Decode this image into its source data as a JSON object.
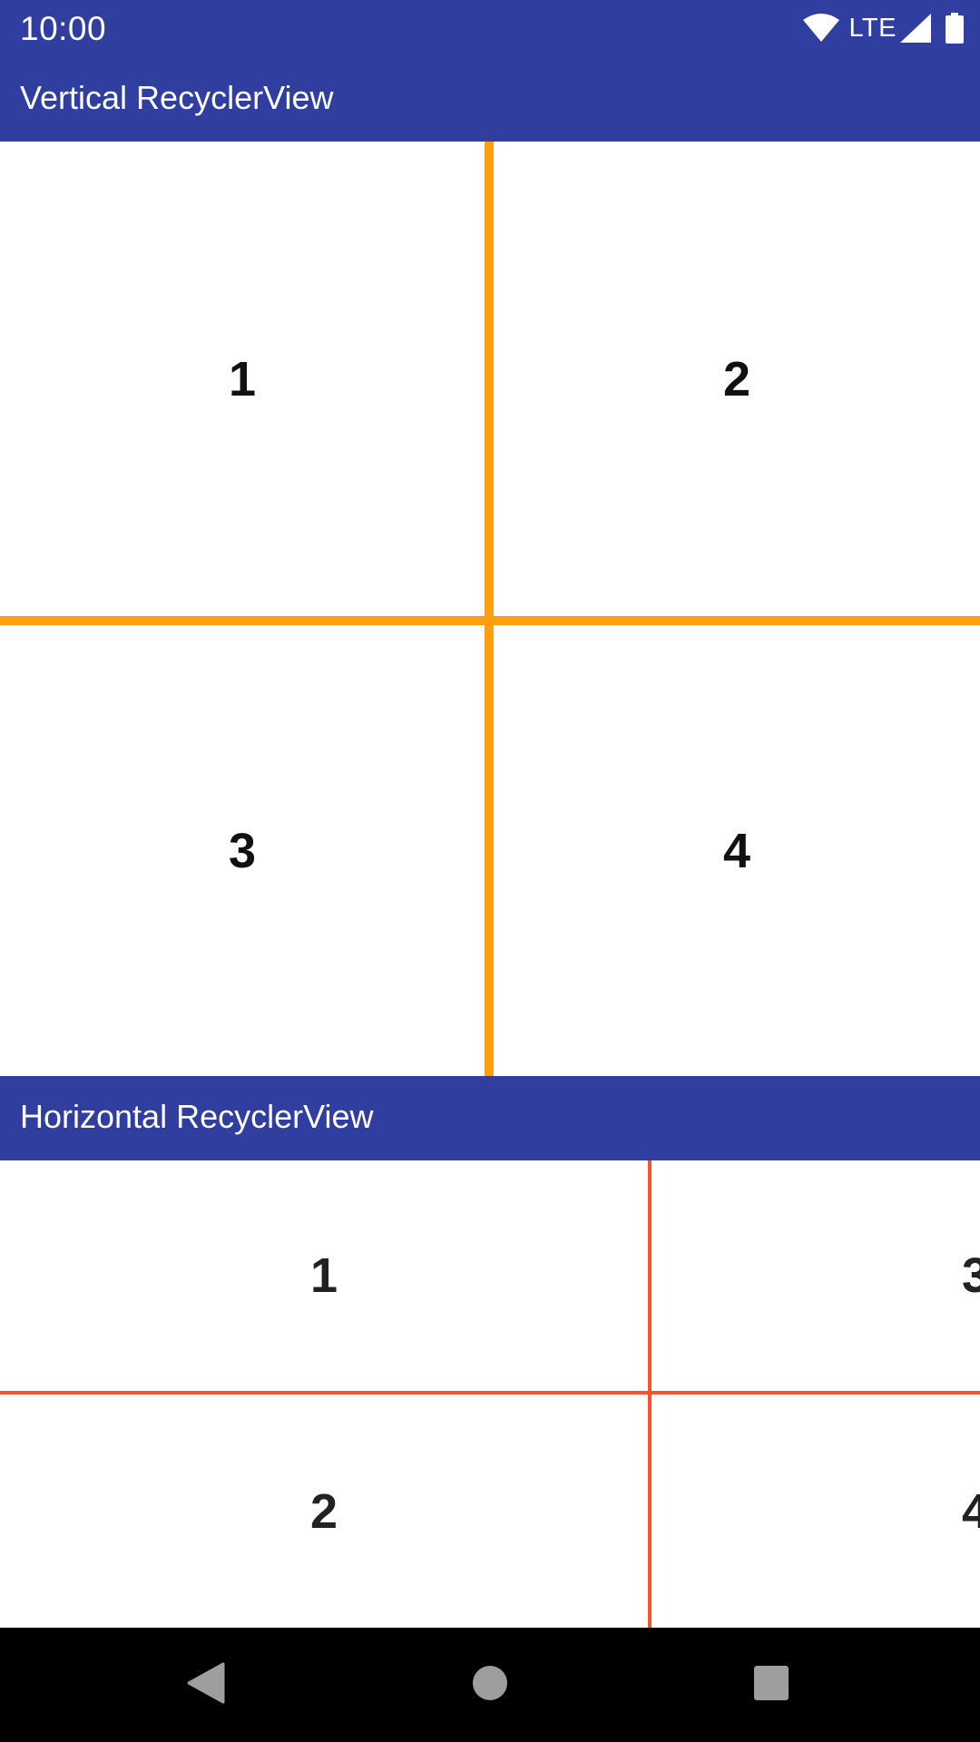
{
  "status_bar": {
    "time": "10:00",
    "network": "LTE",
    "icons": [
      "wifi-icon",
      "signal-icon",
      "battery-icon"
    ]
  },
  "vertical_section": {
    "title": "Vertical RecyclerView",
    "items": [
      "1",
      "2",
      "3",
      "4"
    ],
    "divider_color": "#ff9f0f"
  },
  "horizontal_section": {
    "title": "Horizontal RecyclerView",
    "items": [
      "1",
      "2",
      "3",
      "4"
    ],
    "divider_color": "#f2552c"
  },
  "navigation_bar": {
    "buttons": [
      "back-icon",
      "home-icon",
      "recents-icon"
    ]
  },
  "colors": {
    "primary": "#303f9f",
    "nav_background": "#000000",
    "nav_icon": "#9e9e9e"
  }
}
